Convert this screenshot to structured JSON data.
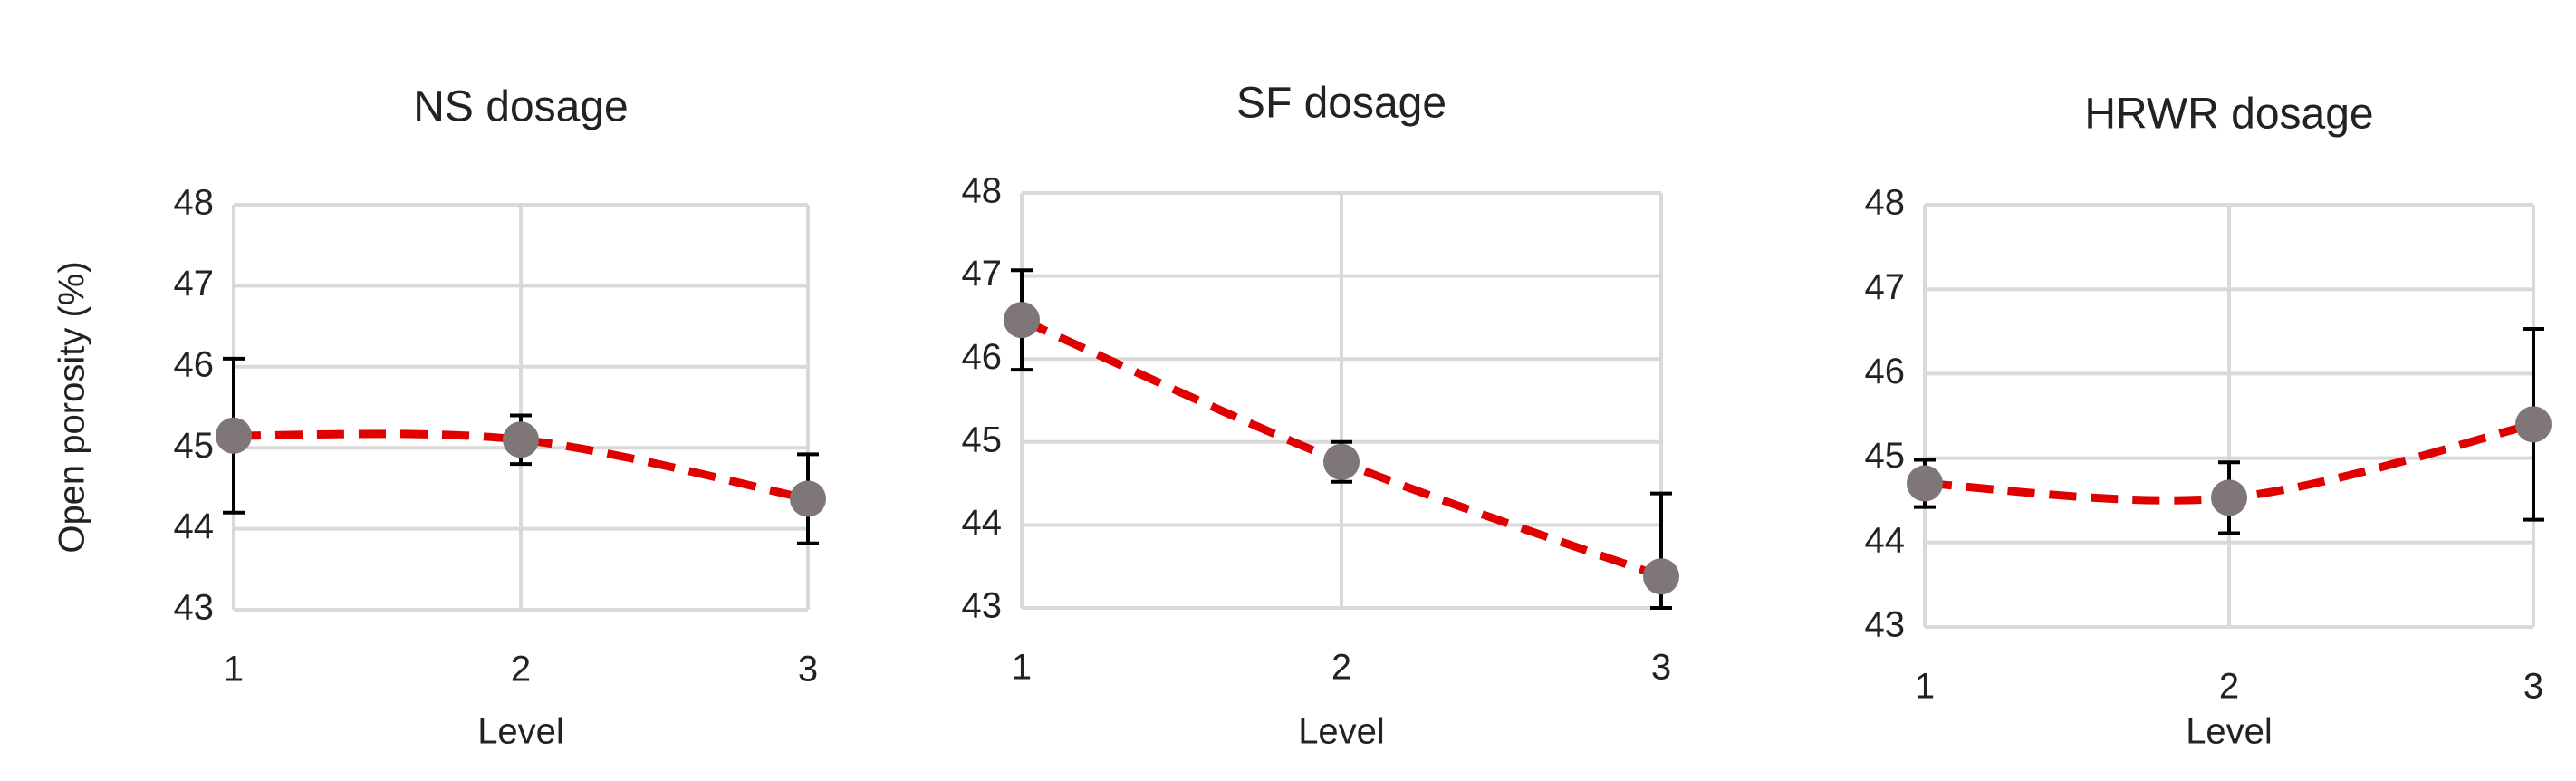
{
  "chart_data": [
    {
      "type": "line",
      "title": "NS dosage",
      "xlabel": "Level",
      "ylabel": "Open porosity (%)",
      "x": [
        1,
        2,
        3
      ],
      "values": [
        45.15,
        45.1,
        44.37
      ],
      "errors": [
        0.95,
        0.3,
        0.55
      ],
      "color": "#e00000",
      "marker_color": "#7f7777",
      "error_color": "#000000",
      "xlim": [
        1,
        3
      ],
      "xticks": [
        1,
        2,
        3
      ],
      "ylim": [
        43,
        48
      ],
      "yticks": [
        43,
        44,
        45,
        46,
        47,
        48
      ],
      "grid": true
    },
    {
      "type": "line",
      "title": "SF dosage",
      "xlabel": "Level",
      "x": [
        1,
        2,
        3
      ],
      "values": [
        46.47,
        44.76,
        43.38
      ],
      "errors": [
        0.6,
        0.24,
        1.0
      ],
      "color": "#e00000",
      "marker_color": "#7f7777",
      "error_color": "#000000",
      "xlim": [
        1,
        3
      ],
      "xticks": [
        1,
        2,
        3
      ],
      "ylim": [
        43,
        48
      ],
      "yticks": [
        43,
        44,
        45,
        46,
        47,
        48
      ],
      "grid": true
    },
    {
      "type": "line",
      "title": "HRWR dosage",
      "xlabel": "Level",
      "x": [
        1,
        2,
        3
      ],
      "values": [
        44.7,
        44.53,
        45.4
      ],
      "errors": [
        0.28,
        0.42,
        1.13
      ],
      "color": "#e00000",
      "marker_color": "#7f7777",
      "error_color": "#000000",
      "xlim": [
        1,
        3
      ],
      "xticks": [
        1,
        2,
        3
      ],
      "ylim": [
        43,
        48
      ],
      "yticks": [
        43,
        44,
        45,
        46,
        47,
        48
      ],
      "grid": true
    }
  ]
}
